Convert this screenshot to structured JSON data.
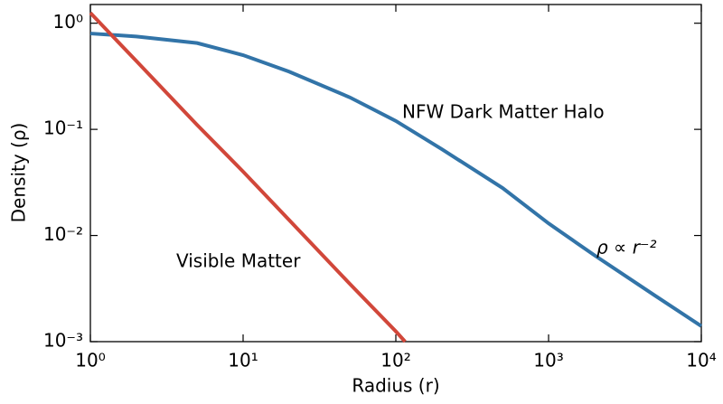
{
  "chart_data": {
    "type": "line",
    "xlabel": "Radius (r)",
    "ylabel": "Density (ρ)",
    "xscale": "log",
    "yscale": "log",
    "xlim": [
      1,
      10000
    ],
    "ylim": [
      0.001,
      1.5
    ],
    "xticks": [
      {
        "value": 1,
        "label": "10⁰"
      },
      {
        "value": 10,
        "label": "10¹"
      },
      {
        "value": 100,
        "label": "10²"
      },
      {
        "value": 1000,
        "label": "10³"
      },
      {
        "value": 10000,
        "label": "10⁴"
      }
    ],
    "yticks": [
      {
        "value": 0.001,
        "label": "10⁻³"
      },
      {
        "value": 0.01,
        "label": "10⁻²"
      },
      {
        "value": 0.1,
        "label": "10⁻¹"
      },
      {
        "value": 1,
        "label": "10⁰"
      }
    ],
    "series": [
      {
        "name": "NFW Dark Matter Halo",
        "color": "#3274a8",
        "x": [
          1,
          2,
          5,
          10,
          20,
          50,
          100,
          200,
          500,
          1000,
          2000,
          5000,
          10000
        ],
        "values": [
          0.8,
          0.75,
          0.65,
          0.5,
          0.35,
          0.2,
          0.12,
          0.065,
          0.028,
          0.013,
          0.0065,
          0.0027,
          0.0014
        ]
      },
      {
        "name": "Visible Matter",
        "color": "#d1473a",
        "x": [
          1,
          2,
          5,
          10,
          20,
          50,
          100,
          115
        ],
        "values": [
          1.25,
          0.44,
          0.11,
          0.04,
          0.014,
          0.0035,
          0.00125,
          0.001
        ]
      }
    ],
    "annotations": [
      "ρ ∝ r⁻²"
    ]
  }
}
